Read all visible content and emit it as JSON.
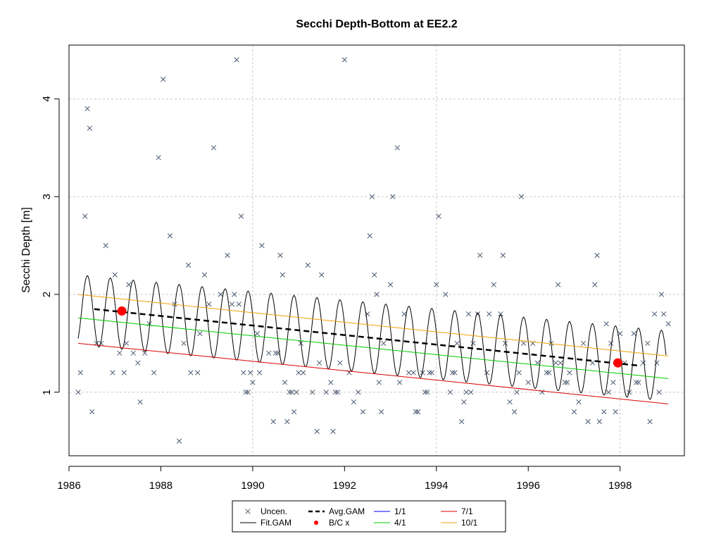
{
  "chart_data": {
    "type": "scatter",
    "title": "Secchi Depth-Bottom at EE2.2",
    "xlabel": "",
    "ylabel": "Secchi Depth [m]",
    "xlim": [
      1986.0,
      1999.4
    ],
    "ylim": [
      0.35,
      4.55
    ],
    "grid": true,
    "x_ticks": [
      1986,
      1988,
      1990,
      1992,
      1994,
      1996,
      1998
    ],
    "x_tick_labels": [
      "1986",
      "1988",
      "1990",
      "1992",
      "1994",
      "1996",
      "1998"
    ],
    "y_ticks": [
      1,
      2,
      3,
      4
    ],
    "y_tick_labels": [
      "1",
      "2",
      "3",
      "4"
    ],
    "legend_position": "bottom-center",
    "legend": [
      {
        "label": "Uncen.",
        "kind": "cross",
        "color": "#4a5a70"
      },
      {
        "label": "Fit.GAM",
        "kind": "line",
        "color": "#000000"
      },
      {
        "label": "Avg.GAM",
        "kind": "dashed",
        "color": "#000000"
      },
      {
        "label": "B/C x",
        "kind": "dot",
        "color": "#ff0000"
      },
      {
        "label": "1/1",
        "kind": "line",
        "color": "#0000ff"
      },
      {
        "label": "4/1",
        "kind": "line",
        "color": "#00cc00"
      },
      {
        "label": "7/1",
        "kind": "line",
        "color": "#dd0000"
      },
      {
        "label": "10/1",
        "kind": "line",
        "color": "#f0a000"
      }
    ],
    "series": [
      {
        "name": "Uncen.",
        "kind": "points",
        "color": "#4a5a70",
        "points": [
          [
            1986.2,
            1.0
          ],
          [
            1986.25,
            1.2
          ],
          [
            1986.35,
            2.8
          ],
          [
            1986.4,
            3.9
          ],
          [
            1986.45,
            3.7
          ],
          [
            1986.5,
            0.8
          ],
          [
            1986.6,
            1.5
          ],
          [
            1986.7,
            1.5
          ],
          [
            1986.8,
            2.5
          ],
          [
            1986.95,
            1.2
          ],
          [
            1987.0,
            2.2
          ],
          [
            1987.1,
            1.4
          ],
          [
            1987.2,
            1.2
          ],
          [
            1987.25,
            1.5
          ],
          [
            1987.3,
            2.1
          ],
          [
            1987.4,
            1.4
          ],
          [
            1987.5,
            1.3
          ],
          [
            1987.55,
            0.9
          ],
          [
            1987.65,
            1.4
          ],
          [
            1987.75,
            1.7
          ],
          [
            1987.85,
            1.2
          ],
          [
            1987.95,
            3.4
          ],
          [
            1988.05,
            4.2
          ],
          [
            1988.2,
            2.6
          ],
          [
            1988.3,
            1.9
          ],
          [
            1988.4,
            0.5
          ],
          [
            1988.5,
            1.5
          ],
          [
            1988.6,
            2.3
          ],
          [
            1988.65,
            1.2
          ],
          [
            1988.8,
            1.2
          ],
          [
            1988.85,
            1.6
          ],
          [
            1988.95,
            2.2
          ],
          [
            1989.05,
            1.9
          ],
          [
            1989.15,
            3.5
          ],
          [
            1989.3,
            2.0
          ],
          [
            1989.45,
            2.4
          ],
          [
            1989.55,
            1.9
          ],
          [
            1989.6,
            2.0
          ],
          [
            1989.65,
            4.4
          ],
          [
            1989.7,
            1.9
          ],
          [
            1989.75,
            2.8
          ],
          [
            1989.8,
            1.2
          ],
          [
            1989.85,
            1.0
          ],
          [
            1989.9,
            1.0
          ],
          [
            1989.95,
            1.2
          ],
          [
            1990.0,
            1.1
          ],
          [
            1990.1,
            1.6
          ],
          [
            1990.15,
            1.2
          ],
          [
            1990.2,
            2.5
          ],
          [
            1990.35,
            1.4
          ],
          [
            1990.45,
            0.7
          ],
          [
            1990.5,
            1.4
          ],
          [
            1990.55,
            1.4
          ],
          [
            1990.6,
            2.4
          ],
          [
            1990.65,
            2.2
          ],
          [
            1990.7,
            1.1
          ],
          [
            1990.75,
            0.7
          ],
          [
            1990.8,
            1.0
          ],
          [
            1990.85,
            1.0
          ],
          [
            1990.9,
            0.8
          ],
          [
            1990.95,
            1.0
          ],
          [
            1991.0,
            1.2
          ],
          [
            1991.05,
            1.5
          ],
          [
            1991.1,
            1.2
          ],
          [
            1991.2,
            2.3
          ],
          [
            1991.3,
            1.0
          ],
          [
            1991.4,
            0.6
          ],
          [
            1991.45,
            1.3
          ],
          [
            1991.5,
            2.2
          ],
          [
            1991.6,
            1.0
          ],
          [
            1991.7,
            1.1
          ],
          [
            1991.75,
            0.6
          ],
          [
            1991.8,
            1.0
          ],
          [
            1991.85,
            1.0
          ],
          [
            1991.9,
            1.3
          ],
          [
            1992.0,
            4.4
          ],
          [
            1992.1,
            1.2
          ],
          [
            1992.2,
            0.9
          ],
          [
            1992.3,
            1.0
          ],
          [
            1992.4,
            0.8
          ],
          [
            1992.5,
            1.8
          ],
          [
            1992.55,
            2.6
          ],
          [
            1992.6,
            3.0
          ],
          [
            1992.65,
            2.2
          ],
          [
            1992.7,
            2.0
          ],
          [
            1992.75,
            1.1
          ],
          [
            1992.8,
            0.8
          ],
          [
            1992.85,
            1.5
          ],
          [
            1993.0,
            2.1
          ],
          [
            1993.05,
            3.0
          ],
          [
            1993.15,
            3.5
          ],
          [
            1993.2,
            1.1
          ],
          [
            1993.3,
            1.8
          ],
          [
            1993.4,
            1.2
          ],
          [
            1993.5,
            1.2
          ],
          [
            1993.55,
            0.8
          ],
          [
            1993.6,
            0.8
          ],
          [
            1993.7,
            1.2
          ],
          [
            1993.75,
            1.0
          ],
          [
            1993.8,
            1.0
          ],
          [
            1993.85,
            1.2
          ],
          [
            1993.9,
            1.2
          ],
          [
            1994.0,
            2.1
          ],
          [
            1994.05,
            2.8
          ],
          [
            1994.2,
            2.0
          ],
          [
            1994.3,
            1.0
          ],
          [
            1994.35,
            1.2
          ],
          [
            1994.4,
            1.2
          ],
          [
            1994.45,
            1.5
          ],
          [
            1994.55,
            0.7
          ],
          [
            1994.6,
            0.9
          ],
          [
            1994.65,
            1.0
          ],
          [
            1994.7,
            1.8
          ],
          [
            1994.75,
            1.0
          ],
          [
            1994.8,
            1.5
          ],
          [
            1994.9,
            1.8
          ],
          [
            1994.95,
            2.4
          ],
          [
            1995.1,
            1.2
          ],
          [
            1995.15,
            1.8
          ],
          [
            1995.25,
            2.1
          ],
          [
            1995.4,
            1.8
          ],
          [
            1995.45,
            2.4
          ],
          [
            1995.5,
            1.5
          ],
          [
            1995.6,
            0.9
          ],
          [
            1995.7,
            0.8
          ],
          [
            1995.75,
            1.0
          ],
          [
            1995.8,
            1.2
          ],
          [
            1995.85,
            3.0
          ],
          [
            1995.9,
            1.5
          ],
          [
            1996.0,
            1.1
          ],
          [
            1996.1,
            1.5
          ],
          [
            1996.2,
            1.3
          ],
          [
            1996.3,
            1.0
          ],
          [
            1996.4,
            1.2
          ],
          [
            1996.45,
            1.2
          ],
          [
            1996.5,
            1.5
          ],
          [
            1996.6,
            1.3
          ],
          [
            1996.65,
            2.1
          ],
          [
            1996.7,
            1.3
          ],
          [
            1996.8,
            1.1
          ],
          [
            1996.85,
            1.1
          ],
          [
            1996.9,
            1.2
          ],
          [
            1997.0,
            0.8
          ],
          [
            1997.1,
            0.9
          ],
          [
            1997.2,
            1.5
          ],
          [
            1997.3,
            0.7
          ],
          [
            1997.4,
            1.3
          ],
          [
            1997.45,
            2.1
          ],
          [
            1997.5,
            2.4
          ],
          [
            1997.55,
            0.7
          ],
          [
            1997.65,
            0.8
          ],
          [
            1997.7,
            1.7
          ],
          [
            1997.75,
            1.0
          ],
          [
            1997.8,
            1.5
          ],
          [
            1997.85,
            1.1
          ],
          [
            1997.9,
            0.8
          ],
          [
            1998.0,
            1.6
          ],
          [
            1998.1,
            1.3
          ],
          [
            1998.2,
            1.0
          ],
          [
            1998.3,
            1.6
          ],
          [
            1998.35,
            1.1
          ],
          [
            1998.4,
            1.1
          ],
          [
            1998.5,
            1.3
          ],
          [
            1998.6,
            1.5
          ],
          [
            1998.65,
            0.7
          ],
          [
            1998.75,
            1.8
          ],
          [
            1998.8,
            1.3
          ],
          [
            1998.85,
            1.0
          ],
          [
            1998.9,
            2.0
          ],
          [
            1998.95,
            1.8
          ],
          [
            1999.05,
            1.7
          ]
        ]
      },
      {
        "name": "Fit.GAM",
        "kind": "seasonal-line",
        "color": "#000000",
        "x_start": 1986.2,
        "x_end": 1999.0,
        "mean_start": 1.84,
        "mean_end": 1.27,
        "amplitude": 0.36,
        "period": 0.5,
        "peak_offset": 0.2
      },
      {
        "name": "Avg.GAM",
        "kind": "dashed-line",
        "color": "#000000",
        "points": [
          [
            1986.55,
            1.85
          ],
          [
            1998.45,
            1.27
          ]
        ]
      },
      {
        "name": "B/C x",
        "kind": "dots",
        "color": "#ff0000",
        "points": [
          [
            1987.15,
            1.83
          ],
          [
            1997.95,
            1.3
          ]
        ]
      },
      {
        "name": "4/1",
        "kind": "line",
        "color": "#00cc00",
        "points": [
          [
            1986.2,
            1.76
          ],
          [
            1999.05,
            1.14
          ]
        ]
      },
      {
        "name": "7/1",
        "kind": "line",
        "color": "#dd0000",
        "points": [
          [
            1986.2,
            1.5
          ],
          [
            1999.05,
            0.88
          ]
        ]
      },
      {
        "name": "10/1",
        "kind": "line",
        "color": "#f0a000",
        "points": [
          [
            1986.2,
            2.0
          ],
          [
            1999.05,
            1.37
          ]
        ]
      }
    ]
  }
}
